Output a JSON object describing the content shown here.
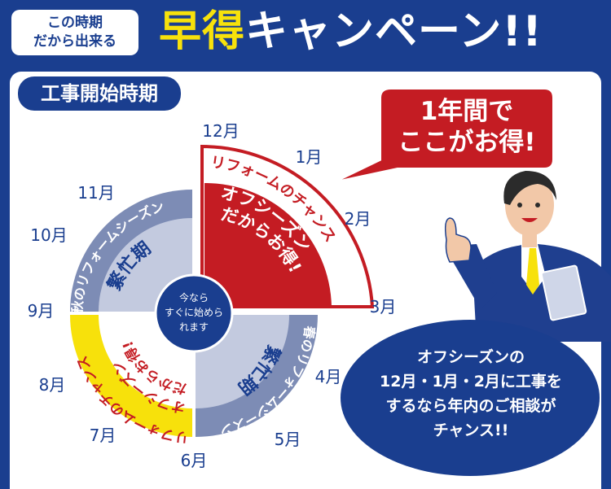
{
  "header": {
    "badge_line1": "この時期",
    "badge_line2": "だから出来る",
    "title_accent": "早得",
    "title_rest": "キャンペーン!!"
  },
  "section": {
    "label": "工事開始時期"
  },
  "wheel": {
    "months": [
      "12月",
      "1月",
      "2月",
      "3月",
      "4月",
      "5月",
      "6月",
      "7月",
      "8月",
      "9月",
      "10月",
      "11月"
    ],
    "center_line1": "今なら",
    "center_line2": "すぐに始めら",
    "center_line3": "れます",
    "highlight_outer": "リフォームのチャンス",
    "highlight_inner_line1": "オフシーズン",
    "highlight_inner_line2": "だからお得!",
    "spring_outer": "春のリフォームシーズン",
    "spring_inner": "繁忙期",
    "summer_outer": "リフォームのチャンス",
    "summer_inner_line1": "オフシーズン",
    "summer_inner_line2": "だからお得!",
    "autumn_outer": "秋のリフォームシーズン",
    "autumn_inner": "繁忙期"
  },
  "bubble": {
    "line1": "1年間で",
    "line2": "ここがお得!"
  },
  "callout": {
    "line1": "オフシーズンの",
    "line2": "12月・1月・2月に工事を",
    "line3": "するなら年内のご相談が",
    "line4": "チャンス!!"
  },
  "colors": {
    "navy": "#1a3e8f",
    "red": "#c41c23",
    "yellow": "#f7e10b",
    "slate": "#7d8cb5",
    "lightslate": "#c3cadf"
  },
  "illustration": {
    "figure": "businessman-pointing-up"
  }
}
